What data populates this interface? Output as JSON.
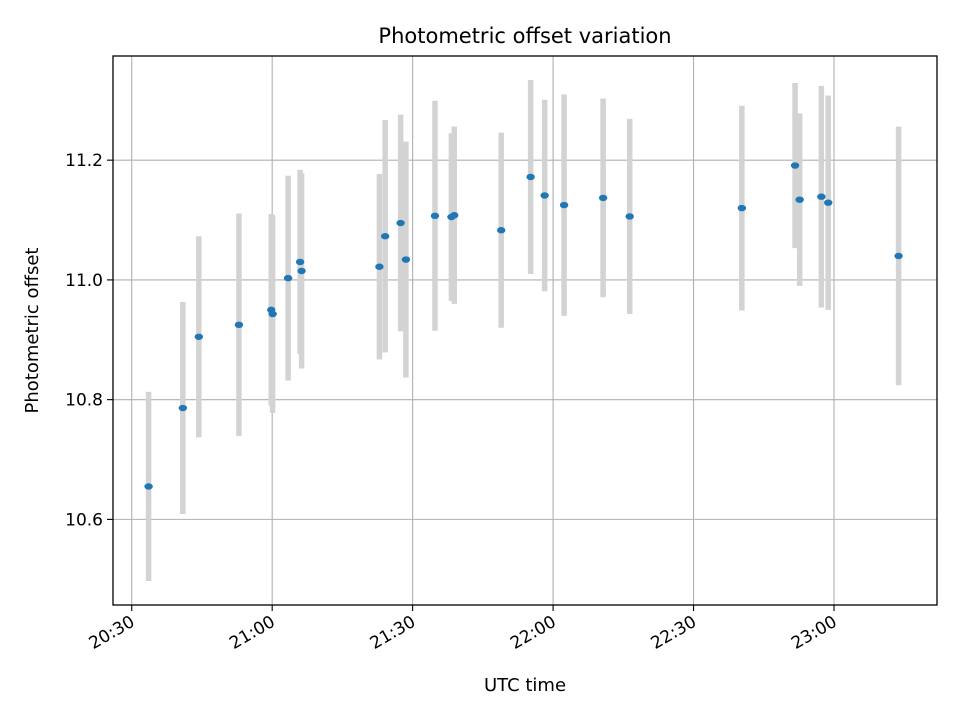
{
  "chart_data": {
    "type": "scatter",
    "title": "Photometric offset variation",
    "xlabel": "UTC time",
    "ylabel": "Photometric offset",
    "xlim": [
      "20:26",
      "23:22"
    ],
    "ylim": [
      10.457,
      11.374
    ],
    "xticks": [
      "20:30",
      "21:00",
      "21:30",
      "22:00",
      "22:30",
      "23:00"
    ],
    "yticks": [
      10.6,
      10.8,
      11.0,
      11.2
    ],
    "grid": true,
    "marker_color": "#1f77b4",
    "errorbar_color": "#d3d3d3",
    "points": [
      {
        "x": "20:33:36",
        "y": 10.655,
        "err": 0.158
      },
      {
        "x": "20:40:55",
        "y": 10.786,
        "err": 0.177
      },
      {
        "x": "20:44:20",
        "y": 10.905,
        "err": 0.168
      },
      {
        "x": "20:52:54",
        "y": 10.925,
        "err": 0.186
      },
      {
        "x": "20:59:48",
        "y": 10.95,
        "err": 0.16
      },
      {
        "x": "21:00:06",
        "y": 10.943,
        "err": 0.165
      },
      {
        "x": "21:03:24",
        "y": 11.003,
        "err": 0.171
      },
      {
        "x": "21:05:58",
        "y": 11.03,
        "err": 0.154
      },
      {
        "x": "21:06:17",
        "y": 11.015,
        "err": 0.163
      },
      {
        "x": "21:22:54",
        "y": 11.022,
        "err": 0.155
      },
      {
        "x": "21:24:08",
        "y": 11.073,
        "err": 0.194
      },
      {
        "x": "21:27:26",
        "y": 11.095,
        "err": 0.181
      },
      {
        "x": "21:28:34",
        "y": 11.034,
        "err": 0.197
      },
      {
        "x": "21:34:46",
        "y": 11.107,
        "err": 0.192
      },
      {
        "x": "21:38:17",
        "y": 11.105,
        "err": 0.14
      },
      {
        "x": "21:38:53",
        "y": 11.108,
        "err": 0.148
      },
      {
        "x": "21:48:55",
        "y": 11.083,
        "err": 0.163
      },
      {
        "x": "21:55:12",
        "y": 11.172,
        "err": 0.162
      },
      {
        "x": "21:58:12",
        "y": 11.141,
        "err": 0.16
      },
      {
        "x": "22:02:21",
        "y": 11.125,
        "err": 0.185
      },
      {
        "x": "22:10:41",
        "y": 11.137,
        "err": 0.166
      },
      {
        "x": "22:16:22",
        "y": 11.106,
        "err": 0.163
      },
      {
        "x": "22:40:19",
        "y": 11.12,
        "err": 0.171
      },
      {
        "x": "22:51:41",
        "y": 11.191,
        "err": 0.138
      },
      {
        "x": "22:52:40",
        "y": 11.134,
        "err": 0.144
      },
      {
        "x": "22:57:18",
        "y": 11.139,
        "err": 0.185
      },
      {
        "x": "22:58:46",
        "y": 11.129,
        "err": 0.179
      },
      {
        "x": "23:13:48",
        "y": 11.04,
        "err": 0.216
      }
    ]
  }
}
